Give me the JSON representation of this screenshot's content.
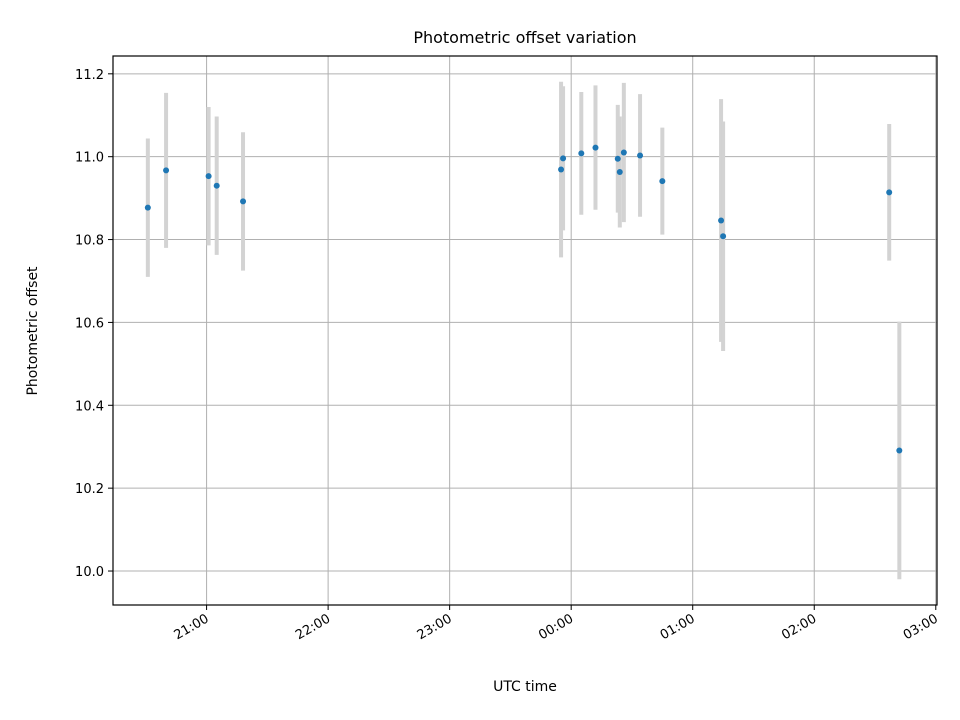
{
  "chart_data": {
    "type": "scatter",
    "title": "Photometric offset variation",
    "xlabel": "UTC time",
    "ylabel": "Photometric offset",
    "x_tick_labels": [
      "21:00",
      "22:00",
      "23:00",
      "00:00",
      "01:00",
      "02:00",
      "03:00"
    ],
    "y_tick_labels": [
      "10.0",
      "10.2",
      "10.4",
      "10.6",
      "10.8",
      "11.0",
      "11.2"
    ],
    "x_ticks_hours": [
      21,
      22,
      23,
      24,
      25,
      26,
      27
    ],
    "y_ticks": [
      10.0,
      10.2,
      10.4,
      10.6,
      10.8,
      11.0,
      11.2
    ],
    "xlim_hours": [
      20.23,
      27.01
    ],
    "ylim": [
      9.918,
      11.243
    ],
    "grid": true,
    "colors": {
      "point": "#1f77b4",
      "errorbar": "#d3d3d3",
      "grid": "#b0b0b0"
    },
    "series": [
      {
        "points": [
          {
            "time": "20:31",
            "y": 10.877,
            "yerr": 0.167
          },
          {
            "time": "20:40",
            "y": 10.967,
            "yerr": 0.187
          },
          {
            "time": "21:01",
            "y": 10.953,
            "yerr": 0.167
          },
          {
            "time": "21:05",
            "y": 10.93,
            "yerr": 0.167
          },
          {
            "time": "21:18",
            "y": 10.892,
            "yerr": 0.167
          },
          {
            "time": "23:55",
            "y": 10.969,
            "yerr": 0.212
          },
          {
            "time": "23:56",
            "y": 10.996,
            "yerr": 0.174
          },
          {
            "time": "00:05",
            "y": 11.008,
            "yerr": 0.148
          },
          {
            "time": "00:12",
            "y": 11.022,
            "yerr": 0.15
          },
          {
            "time": "00:23",
            "y": 10.995,
            "yerr": 0.13
          },
          {
            "time": "00:24",
            "y": 10.963,
            "yerr": 0.134
          },
          {
            "time": "00:26",
            "y": 11.01,
            "yerr": 0.168
          },
          {
            "time": "00:34",
            "y": 11.003,
            "yerr": 0.148
          },
          {
            "time": "00:45",
            "y": 10.941,
            "yerr": 0.129
          },
          {
            "time": "01:14",
            "y": 10.846,
            "yerr": 0.293
          },
          {
            "time": "01:15",
            "y": 10.808,
            "yerr": 0.277
          },
          {
            "time": "02:37",
            "y": 10.914,
            "yerr": 0.165
          },
          {
            "time": "02:42",
            "y": 10.291,
            "yerr": 0.311
          }
        ]
      }
    ]
  }
}
